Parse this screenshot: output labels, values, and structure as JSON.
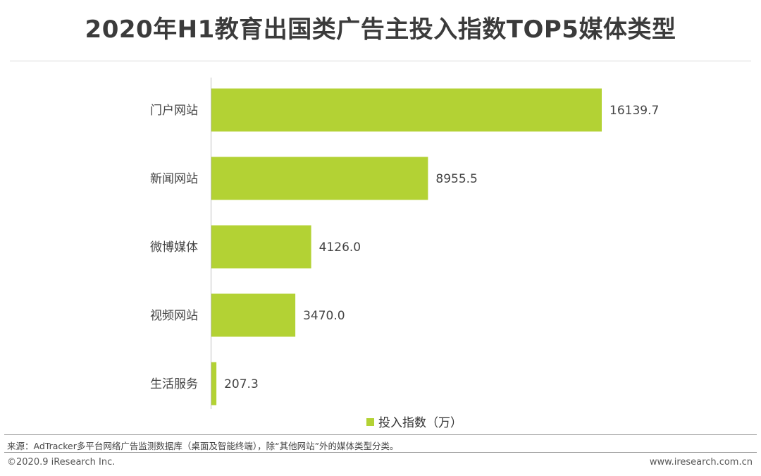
{
  "title": "2020年H1教育出国类广告主投入指数TOP5媒体类型",
  "chart_data": {
    "type": "bar",
    "orientation": "horizontal",
    "categories": [
      "门户网站",
      "新闻网站",
      "微博媒体",
      "视频网站",
      "生活服务"
    ],
    "series": [
      {
        "name": "投入指数（万）",
        "values": [
          16139.7,
          8955.5,
          4126.0,
          3470.0,
          207.3
        ]
      }
    ],
    "value_labels": [
      "16139.7",
      "8955.5",
      "4126.0",
      "3470.0",
      "207.3"
    ],
    "xlim": [
      0,
      17000
    ],
    "grid": false,
    "legend_position": "bottom",
    "bar_color": "#b3d234"
  },
  "footer": {
    "source": "来源：AdTracker多平台网络广告监测数据库（桌面及智能终端），除“其他网站”外的媒体类型分类。",
    "copyright": "©2020.9 iResearch Inc.",
    "website": "www.iresearch.com.cn"
  }
}
